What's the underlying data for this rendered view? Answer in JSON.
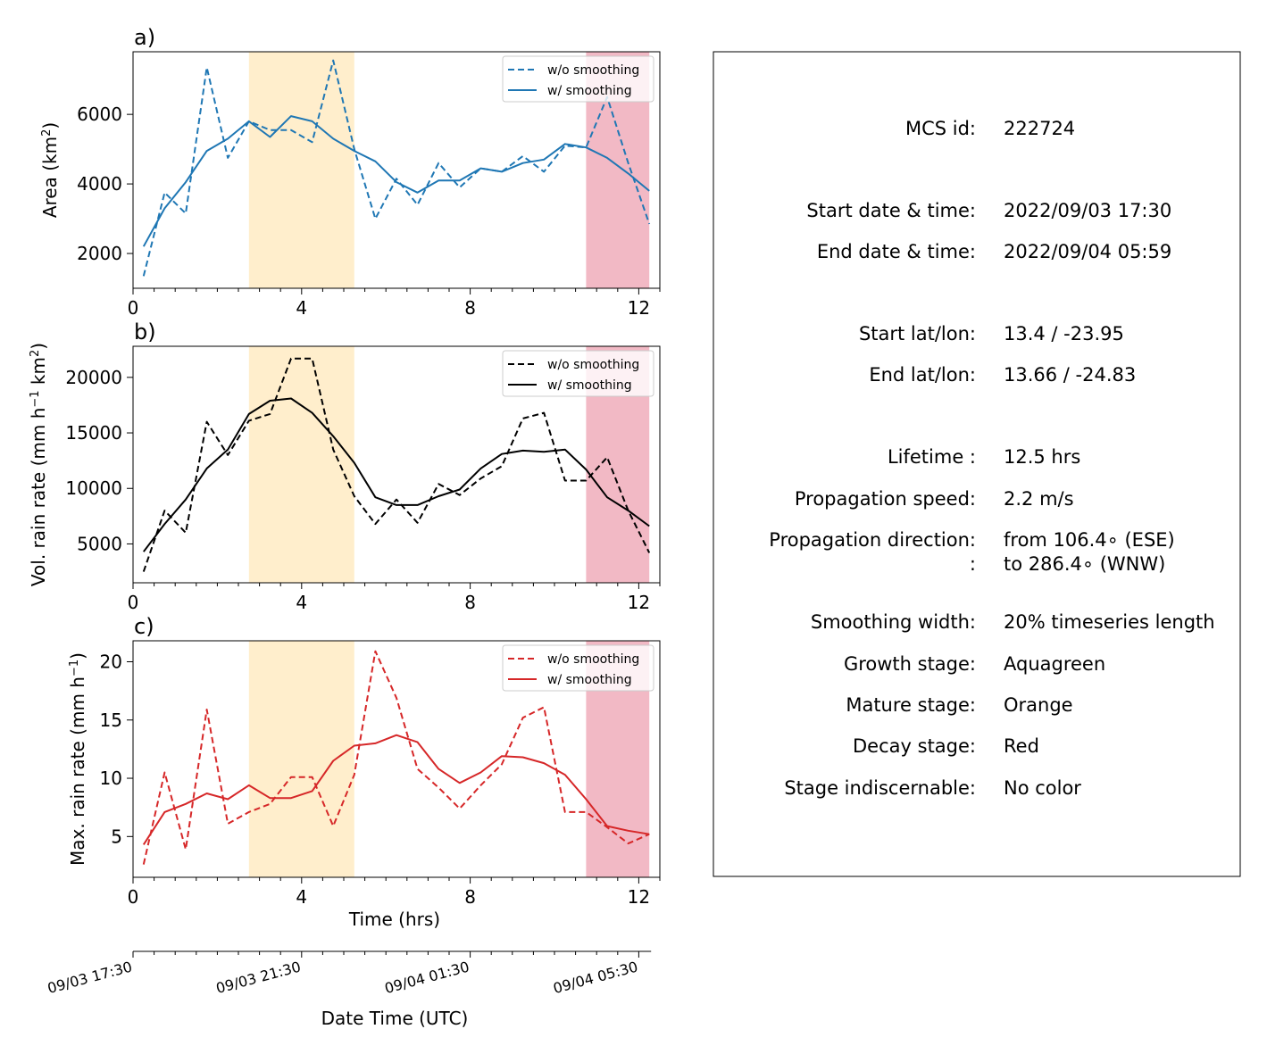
{
  "chart_data": [
    {
      "type": "line",
      "panel_label": "a)",
      "ylabel": "Area  (km²)",
      "ylabel_base": "Area  (km",
      "ylabel_sup": "2",
      "ylabel_end": ")",
      "color": "#1f77b4",
      "xlim": [
        0,
        12.5
      ],
      "ylim": [
        1000,
        7800
      ],
      "x_ticks": [
        0,
        4,
        8,
        12
      ],
      "y_ticks": [
        2000,
        4000,
        6000
      ],
      "x": [
        0.25,
        0.75,
        1.25,
        1.75,
        2.25,
        2.75,
        3.25,
        3.75,
        4.25,
        4.75,
        5.25,
        5.75,
        6.25,
        6.75,
        7.25,
        7.75,
        8.25,
        8.75,
        9.25,
        9.75,
        10.25,
        10.75,
        11.25,
        11.75,
        12.25
      ],
      "series": [
        {
          "name": "w/o smoothing",
          "style": "dashed",
          "values": [
            1350,
            3750,
            3150,
            7350,
            4750,
            5800,
            5550,
            5550,
            5200,
            7550,
            5000,
            3000,
            4150,
            3400,
            4600,
            3900,
            4450,
            4350,
            4800,
            4350,
            5100,
            5050,
            6500,
            4600,
            2850
          ]
        },
        {
          "name": "w/ smoothing",
          "style": "solid",
          "values": [
            2200,
            3300,
            4050,
            4950,
            5300,
            5800,
            5350,
            5950,
            5800,
            5300,
            4950,
            4650,
            4050,
            3750,
            4100,
            4100,
            4450,
            4350,
            4600,
            4700,
            5150,
            5050,
            4750,
            4300,
            3800
          ]
        }
      ],
      "stages": [
        {
          "name": "mature",
          "x0": 2.75,
          "x1": 5.25,
          "color": "#ffeecc"
        },
        {
          "name": "decay",
          "x0": 10.75,
          "x1": 12.25,
          "color": "#f2b9c5"
        }
      ]
    },
    {
      "type": "line",
      "panel_label": "b)",
      "ylabel": "Vol. rain rate (mm h⁻¹ km²)",
      "ylabel_base": "Vol. rain rate (mm h",
      "ylabel_sup": "−1",
      "ylabel_mid": " km",
      "ylabel_sup2": "2",
      "ylabel_end": ")",
      "color": "#000000",
      "xlim": [
        0,
        12.5
      ],
      "ylim": [
        1500,
        22800
      ],
      "x_ticks": [
        0,
        4,
        8,
        12
      ],
      "y_ticks": [
        5000,
        10000,
        15000,
        20000
      ],
      "x": [
        0.25,
        0.75,
        1.25,
        1.75,
        2.25,
        2.75,
        3.25,
        3.75,
        4.25,
        4.75,
        5.25,
        5.75,
        6.25,
        6.75,
        7.25,
        7.75,
        8.25,
        8.75,
        9.25,
        9.75,
        10.25,
        10.75,
        11.25,
        11.75,
        12.25
      ],
      "series": [
        {
          "name": "w/o smoothing",
          "style": "dashed",
          "values": [
            2500,
            8000,
            6000,
            16000,
            13000,
            16100,
            16700,
            21700,
            21700,
            13500,
            9300,
            6800,
            9000,
            6900,
            10400,
            9400,
            10900,
            12000,
            16300,
            16800,
            10700,
            10700,
            12800,
            8000,
            4200
          ]
        },
        {
          "name": "w/ smoothing",
          "style": "solid",
          "values": [
            4300,
            6800,
            9000,
            11800,
            13500,
            16700,
            17900,
            18100,
            16800,
            14700,
            12300,
            9200,
            8500,
            8500,
            9300,
            9900,
            11800,
            13100,
            13400,
            13300,
            13500,
            11700,
            9200,
            8000,
            6600
          ]
        }
      ],
      "stages": [
        {
          "name": "mature",
          "x0": 2.75,
          "x1": 5.25,
          "color": "#ffeecc"
        },
        {
          "name": "decay",
          "x0": 10.75,
          "x1": 12.25,
          "color": "#f2b9c5"
        }
      ]
    },
    {
      "type": "line",
      "panel_label": "c)",
      "ylabel": "Max. rain rate  (mm h⁻¹)",
      "ylabel_base": "Max. rain rate  (mm h",
      "ylabel_sup": "−1",
      "ylabel_end": ")",
      "color": "#d62728",
      "xlim": [
        0,
        12.5
      ],
      "ylim": [
        1.5,
        21.8
      ],
      "x_ticks": [
        0,
        4,
        8,
        12
      ],
      "y_ticks": [
        5,
        10,
        15,
        20
      ],
      "xlabel": "Time (hrs)",
      "x": [
        0.25,
        0.75,
        1.25,
        1.75,
        2.25,
        2.75,
        3.25,
        3.75,
        4.25,
        4.75,
        5.25,
        5.75,
        6.25,
        6.75,
        7.25,
        7.75,
        8.25,
        8.75,
        9.25,
        9.75,
        10.25,
        10.75,
        11.25,
        11.75,
        12.25
      ],
      "series": [
        {
          "name": "w/o smoothing",
          "style": "dashed",
          "values": [
            2.6,
            10.5,
            3.9,
            15.9,
            6.1,
            7.1,
            7.8,
            10.1,
            10.1,
            5.9,
            10.3,
            20.9,
            16.9,
            10.8,
            9.2,
            7.4,
            9.4,
            11.2,
            15.2,
            16.1,
            7.1,
            7.1,
            5.8,
            4.4,
            5.2
          ]
        },
        {
          "name": "w/ smoothing",
          "style": "solid",
          "values": [
            4.3,
            7.1,
            7.8,
            8.7,
            8.2,
            9.4,
            8.3,
            8.3,
            8.9,
            11.5,
            12.8,
            13.0,
            13.7,
            13.1,
            10.8,
            9.6,
            10.5,
            11.9,
            11.8,
            11.3,
            10.3,
            8.2,
            5.9,
            5.5,
            5.2
          ]
        }
      ],
      "stages": [
        {
          "name": "mature",
          "x0": 2.75,
          "x1": 5.25,
          "color": "#ffeecc"
        },
        {
          "name": "decay",
          "x0": 10.75,
          "x1": 12.25,
          "color": "#f2b9c5"
        }
      ]
    }
  ],
  "datetime_axis": {
    "label": "Date Time (UTC)",
    "ticks": [
      {
        "x": 0,
        "label": "09/03 17:30"
      },
      {
        "x": 4,
        "label": "09/03 21:30"
      },
      {
        "x": 8,
        "label": "09/04 01:30"
      },
      {
        "x": 12,
        "label": "09/04 05:30"
      }
    ],
    "minor_step": 0.5,
    "max": 12.25
  },
  "info": {
    "rows": [
      {
        "label": "MCS id:",
        "value": "222724"
      },
      {
        "label": "Start date & time:",
        "value": "2022/09/03 17:30"
      },
      {
        "label": "End date & time:",
        "value": "2022/09/04 05:59"
      },
      {
        "label": "Start lat/lon:",
        "value": "13.4 / -23.95"
      },
      {
        "label": "End lat/lon:",
        "value": "13.66 / -24.83"
      },
      {
        "label": "Lifetime :",
        "value": "12.5 hrs"
      },
      {
        "label": "Propagation speed:",
        "value": "2.2 m/s"
      },
      {
        "label": "Propagation direction:",
        "value": "from 106.4∘ (ESE)"
      },
      {
        "label": ":",
        "value": "to   286.4∘ (WNW)"
      },
      {
        "label": "Smoothing width:",
        "value": "20% timeseries length"
      },
      {
        "label": "Growth stage:",
        "value": "Aquagreen"
      },
      {
        "label": "Mature stage:",
        "value": "Orange"
      },
      {
        "label": "Decay stage:",
        "value": "Red"
      },
      {
        "label": "Stage indiscernable:",
        "value": "No color"
      }
    ]
  }
}
